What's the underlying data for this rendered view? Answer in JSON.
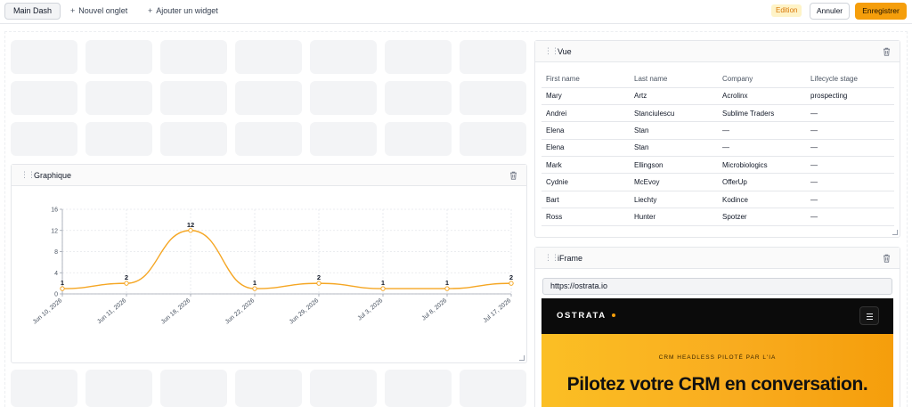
{
  "toolbar": {
    "tab_main": "Main Dash",
    "new_tab": "Nouvel onglet",
    "add_widget": "Ajouter un widget",
    "plus": "+",
    "edition": "Edition",
    "cancel": "Annuler",
    "save": "Enregistrer"
  },
  "chart_panel": {
    "title": "Graphique"
  },
  "chart_data": {
    "type": "line",
    "x": [
      "Jun 10, 2026",
      "Jun 11, 2026",
      "Jun 18, 2026",
      "Jun 22, 2026",
      "Jun 29, 2026",
      "Jul 3, 2026",
      "Jul 8, 2026",
      "Jul 17, 2026"
    ],
    "values": [
      1,
      2,
      12,
      1,
      2,
      1,
      1,
      2
    ],
    "data_labels": [
      "1",
      "2",
      "12",
      "1",
      "2",
      "1",
      "1",
      "2"
    ],
    "y_ticks": [
      0,
      4,
      8,
      12,
      16
    ],
    "y_tick_labels": [
      "0",
      "4",
      "8",
      "12",
      "16"
    ],
    "ylim": [
      0,
      16
    ],
    "grid": true,
    "smooth": true,
    "line_color": "#f5a623"
  },
  "table_panel": {
    "title": "Vue",
    "columns": [
      "First name",
      "Last name",
      "Company",
      "Lifecycle stage"
    ],
    "rows": [
      [
        "Mary",
        "Artz",
        "Acrolinx",
        "prospecting"
      ],
      [
        "Andrei",
        "Stanciulescu",
        "Sublime Traders",
        "—"
      ],
      [
        "Elena",
        "Stan",
        "—",
        "—"
      ],
      [
        "Elena",
        "Stan",
        "—",
        "—"
      ],
      [
        "Mark",
        "Ellingson",
        "Microbiologics",
        "—"
      ],
      [
        "Cydnie",
        "McEvoy",
        "OfferUp",
        "—"
      ],
      [
        "Bart",
        "Liechty",
        "Kodince",
        "—"
      ],
      [
        "Ross",
        "Hunter",
        "Spotzer",
        "—"
      ]
    ]
  },
  "iframe_panel": {
    "title": "iFrame",
    "url": "https://ostrata.io",
    "site_logo": "OSTRATA",
    "site_kicker": "CRM HEADLESS PILOTÉ PAR L'IA",
    "site_headline": "Pilotez votre CRM en conversation."
  },
  "colors": {
    "accent": "#f59e0b",
    "edition_badge_bg": "#fef3c7",
    "edition_badge_text": "#d97706"
  }
}
